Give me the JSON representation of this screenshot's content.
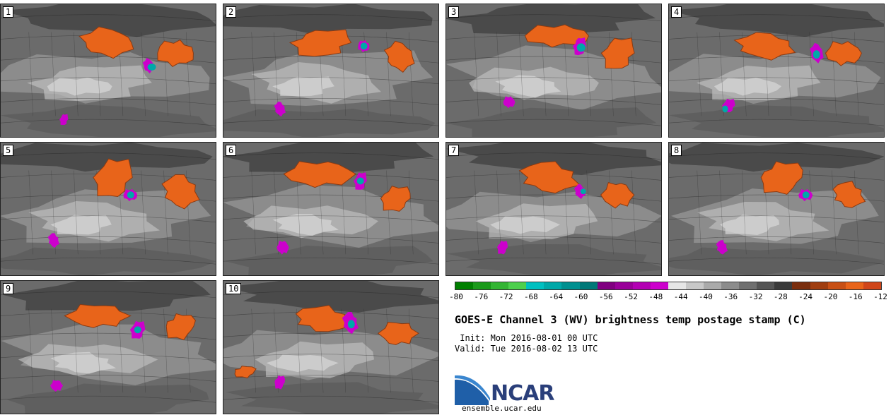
{
  "panels": [
    {
      "label": "1"
    },
    {
      "label": "2"
    },
    {
      "label": "3"
    },
    {
      "label": "4"
    },
    {
      "label": "5"
    },
    {
      "label": "6"
    },
    {
      "label": "7"
    },
    {
      "label": "8"
    },
    {
      "label": "9"
    },
    {
      "label": "10"
    }
  ],
  "colorbar": {
    "colors": [
      "#008000",
      "#1a9a1a",
      "#33b533",
      "#4dd04d",
      "#00c0c0",
      "#00a8a8",
      "#009090",
      "#007878",
      "#800080",
      "#990099",
      "#b300b3",
      "#cc00cc",
      "#e6e6e6",
      "#c8c8c8",
      "#aaaaaa",
      "#8c8c8c",
      "#707070",
      "#555555",
      "#3a3a3a",
      "#7a2e0e",
      "#a03e10",
      "#c85015",
      "#e8641a",
      "#d0461a"
    ],
    "ticks": [
      "-80",
      "-76",
      "-72",
      "-68",
      "-64",
      "-60",
      "-56",
      "-52",
      "-48",
      "-44",
      "-40",
      "-36",
      "-32",
      "-28",
      "-24",
      "-20",
      "-16",
      "-12"
    ]
  },
  "title": "GOES-E Channel 3 (WV) brightness temp postage stamp (C)",
  "init": " Init: Mon 2016-08-01 00 UTC",
  "valid": "Valid: Tue 2016-08-02 13 UTC",
  "logo": {
    "text": "NCAR",
    "site": "ensemble.ucar.edu",
    "color": "#2a3f7a"
  }
}
